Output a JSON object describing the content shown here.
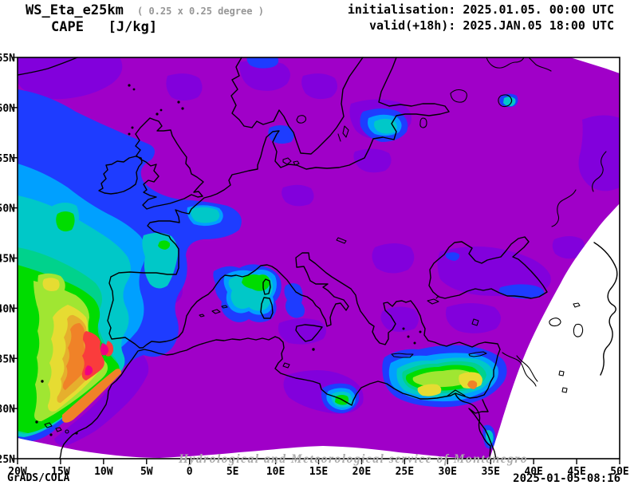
{
  "header": {
    "model": "WS_Eta_e25km",
    "resolution": "( 0.25 x 0.25 degree )",
    "variable_line": "CAPE   [J/kg]",
    "init_line": "initialisation: 2025.01.05. 00:00 UTC",
    "valid_line": "valid(+18h): 2025.JAN.05 18:00 UTC"
  },
  "footer": {
    "credit": "GrADS/COLA",
    "generated": "2025-01-05-08:16"
  },
  "watermark": "Hydrological and Meteorological service of Montenegro",
  "chart_data": {
    "type": "filled-contour-map",
    "variable": "CAPE",
    "units": "J/kg",
    "projection": "lat-lon view of fan-shaped Eta model domain (blank white outside domain)",
    "lon_range": [
      -20,
      50
    ],
    "lat_range": [
      25,
      65
    ],
    "x_ticks": [
      {
        "label": "20W",
        "v": -20
      },
      {
        "label": "15W",
        "v": -15
      },
      {
        "label": "10W",
        "v": -10
      },
      {
        "label": "5W",
        "v": -5
      },
      {
        "label": "0",
        "v": 0
      },
      {
        "label": "5E",
        "v": 5
      },
      {
        "label": "10E",
        "v": 10
      },
      {
        "label": "15E",
        "v": 15
      },
      {
        "label": "20E",
        "v": 20
      },
      {
        "label": "25E",
        "v": 25
      },
      {
        "label": "30E",
        "v": 30
      },
      {
        "label": "35E",
        "v": 35
      },
      {
        "label": "40E",
        "v": 40
      },
      {
        "label": "45E",
        "v": 45
      },
      {
        "label": "50E",
        "v": 50
      }
    ],
    "y_ticks": [
      {
        "label": "65N",
        "v": 65
      },
      {
        "label": "60N",
        "v": 60
      },
      {
        "label": "55N",
        "v": 55
      },
      {
        "label": "50N",
        "v": 50
      },
      {
        "label": "45N",
        "v": 45
      },
      {
        "label": "40N",
        "v": 40
      },
      {
        "label": "35N",
        "v": 35
      },
      {
        "label": "30N",
        "v": 30
      },
      {
        "label": "25N",
        "v": 25
      }
    ],
    "palette": {
      "purple": "#A000C8",
      "violet": "#8200DC",
      "blue": "#1E3CFF",
      "mblue": "#00A0FF",
      "cyan": "#00C8C8",
      "aqua": "#00D28C",
      "green": "#00DC00",
      "ygreen": "#A0E632",
      "yellow": "#E6DC32",
      "dyellow": "#E6AF2D",
      "orange": "#F08228",
      "red": "#FA3C3C",
      "magenta": "#F00082"
    },
    "features": [
      {
        "region": "NE Atlantic off Morocco / SW Iberia (~18-8W, 27-48N)",
        "intensity": "maximum",
        "detail": "broad green/yellow area with orange-red band and small magenta cores near 11W 33-37N; orange band extends SW over Canary Islands"
      },
      {
        "region": "Eastern Mediterranean south of Cyprus (25-36E, 31-35N)",
        "intensity": "moderate-high",
        "detail": "cyan-green band with two yellow cores and a small orange spot near 33E 34N"
      },
      {
        "region": "Gulf of Lion / west of Corsica",
        "intensity": "moderate",
        "detail": "cyan patch with small green core"
      },
      {
        "region": "Gulf of Sidra (Libya)",
        "intensity": "moderate",
        "detail": "blue-cyan patch with green core"
      },
      {
        "region": "Baltic Sea / Gulf of Riga",
        "intensity": "low-moderate",
        "detail": "blue patch with cyan core"
      },
      {
        "region": "English Channel, Brittany and Bay of Biscay",
        "intensity": "low-moderate",
        "detail": "blue band with cyan and green specks"
      },
      {
        "region": "Eastern Black Sea",
        "intensity": "low",
        "detail": "narrow blue streak"
      },
      {
        "region": "Europe interior",
        "intensity": "background",
        "detail": "purple background with violet patches"
      }
    ]
  }
}
